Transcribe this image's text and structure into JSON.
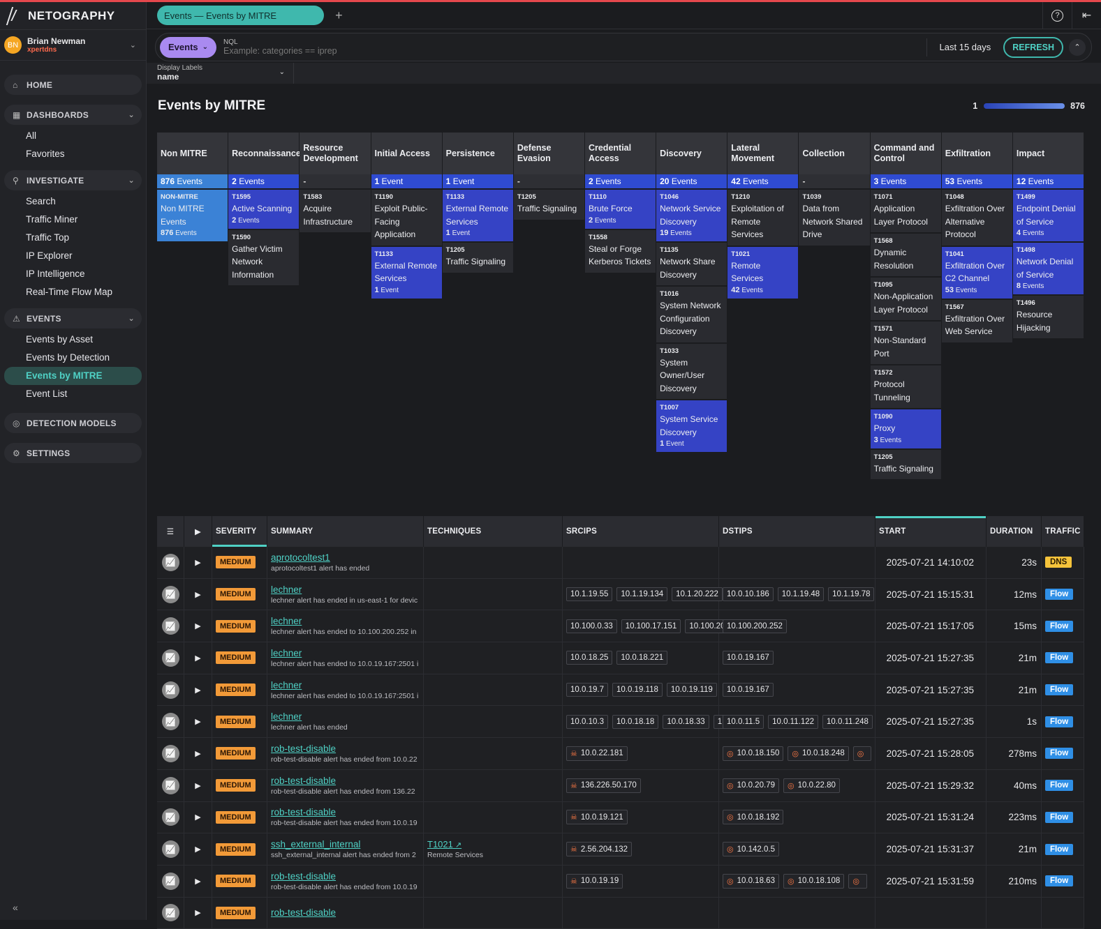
{
  "app": {
    "logo_text": "NETOGRAPHY",
    "accent": "#4fd1c5"
  },
  "user": {
    "initials": "BN",
    "name": "Brian Newman",
    "org": "xpertdns"
  },
  "topbar": {
    "tab_label": "Events — Events by MITRE",
    "add_tab": "+",
    "help_icon": "?",
    "collapse_icon": "⇤"
  },
  "query": {
    "mode": "Events",
    "nql_label": "NQL",
    "placeholder": "Example: categories == iprep",
    "range": "Last 15 days",
    "refresh": "REFRESH"
  },
  "display_labels": {
    "label": "Display Labels",
    "value": "name"
  },
  "nav": {
    "home": "HOME",
    "dashboards": {
      "label": "DASHBOARDS",
      "items": [
        "All",
        "Favorites"
      ]
    },
    "investigate": {
      "label": "INVESTIGATE",
      "items": [
        "Search",
        "Traffic Miner",
        "Traffic Top",
        "IP Explorer",
        "IP Intelligence",
        "Real-Time Flow Map"
      ]
    },
    "events": {
      "label": "EVENTS",
      "items": [
        "Events by Asset",
        "Events by Detection",
        "Events by MITRE",
        "Event List"
      ]
    },
    "detection_models": "DETECTION MODELS",
    "settings": "SETTINGS"
  },
  "page": {
    "title": "Events by MITRE",
    "legend_min": "1",
    "legend_max": "876"
  },
  "mitre": [
    {
      "head": "Non MITRE",
      "count_num": "876",
      "count_txt": "Events",
      "kind": "nomitre",
      "techs": [
        {
          "id": "NON-MITRE",
          "name": "Non MITRE Events",
          "count": "876",
          "unit": "Events",
          "hit": "nomitre"
        }
      ]
    },
    {
      "head": "Reconnaissance",
      "count_num": "2",
      "count_txt": "Events",
      "kind": "hit",
      "techs": [
        {
          "id": "T1595",
          "name": "Active Scanning",
          "count": "2",
          "unit": "Events",
          "hit": "hit"
        },
        {
          "id": "T1590",
          "name": "Gather Victim Network Information",
          "count": "",
          "unit": "",
          "hit": ""
        }
      ]
    },
    {
      "head": "Resource Development",
      "count_num": "-",
      "count_txt": "",
      "kind": "empty",
      "techs": [
        {
          "id": "T1583",
          "name": "Acquire Infrastructure",
          "count": "",
          "unit": "",
          "hit": ""
        }
      ]
    },
    {
      "head": "Initial Access",
      "count_num": "1",
      "count_txt": "Event",
      "kind": "hit",
      "techs": [
        {
          "id": "T1190",
          "name": "Exploit Public-Facing Application",
          "count": "",
          "unit": "",
          "hit": ""
        },
        {
          "id": "T1133",
          "name": "External Remote Services",
          "count": "1",
          "unit": "Event",
          "hit": "hit"
        }
      ]
    },
    {
      "head": "Persistence",
      "count_num": "1",
      "count_txt": "Event",
      "kind": "hit",
      "techs": [
        {
          "id": "T1133",
          "name": "External Remote Services",
          "count": "1",
          "unit": "Event",
          "hit": "hit"
        },
        {
          "id": "T1205",
          "name": "Traffic Signaling",
          "count": "",
          "unit": "",
          "hit": ""
        }
      ]
    },
    {
      "head": "Defense Evasion",
      "count_num": "-",
      "count_txt": "",
      "kind": "empty",
      "techs": [
        {
          "id": "T1205",
          "name": "Traffic Signaling",
          "count": "",
          "unit": "",
          "hit": ""
        }
      ]
    },
    {
      "head": "Credential Access",
      "count_num": "2",
      "count_txt": "Events",
      "kind": "hit",
      "techs": [
        {
          "id": "T1110",
          "name": "Brute Force",
          "count": "2",
          "unit": "Events",
          "hit": "hit"
        },
        {
          "id": "T1558",
          "name": "Steal or Forge Kerberos Tickets",
          "count": "",
          "unit": "",
          "hit": ""
        }
      ]
    },
    {
      "head": "Discovery",
      "count_num": "20",
      "count_txt": "Events",
      "kind": "hit",
      "techs": [
        {
          "id": "T1046",
          "name": "Network Service Discovery",
          "count": "19",
          "unit": "Events",
          "hit": "hit"
        },
        {
          "id": "T1135",
          "name": "Network Share Discovery",
          "count": "",
          "unit": "",
          "hit": ""
        },
        {
          "id": "T1016",
          "name": "System Network Configuration Discovery",
          "count": "",
          "unit": "",
          "hit": ""
        },
        {
          "id": "T1033",
          "name": "System Owner/User Discovery",
          "count": "",
          "unit": "",
          "hit": ""
        },
        {
          "id": "T1007",
          "name": "System Service Discovery",
          "count": "1",
          "unit": "Event",
          "hit": "hit"
        }
      ]
    },
    {
      "head": "Lateral Movement",
      "count_num": "42",
      "count_txt": "Events",
      "kind": "hit",
      "techs": [
        {
          "id": "T1210",
          "name": "Exploitation of Remote Services",
          "count": "",
          "unit": "",
          "hit": ""
        },
        {
          "id": "T1021",
          "name": "Remote Services",
          "count": "42",
          "unit": "Events",
          "hit": "hit"
        }
      ]
    },
    {
      "head": "Collection",
      "count_num": "-",
      "count_txt": "",
      "kind": "empty",
      "techs": [
        {
          "id": "T1039",
          "name": "Data from Network Shared Drive",
          "count": "",
          "unit": "",
          "hit": ""
        }
      ]
    },
    {
      "head": "Command and Control",
      "count_num": "3",
      "count_txt": "Events",
      "kind": "hit",
      "techs": [
        {
          "id": "T1071",
          "name": "Application Layer Protocol",
          "count": "",
          "unit": "",
          "hit": ""
        },
        {
          "id": "T1568",
          "name": "Dynamic Resolution",
          "count": "",
          "unit": "",
          "hit": ""
        },
        {
          "id": "T1095",
          "name": "Non-Application Layer Protocol",
          "count": "",
          "unit": "",
          "hit": ""
        },
        {
          "id": "T1571",
          "name": "Non-Standard Port",
          "count": "",
          "unit": "",
          "hit": ""
        },
        {
          "id": "T1572",
          "name": "Protocol Tunneling",
          "count": "",
          "unit": "",
          "hit": ""
        },
        {
          "id": "T1090",
          "name": "Proxy",
          "count": "3",
          "unit": "Events",
          "hit": "hit"
        },
        {
          "id": "T1205",
          "name": "Traffic Signaling",
          "count": "",
          "unit": "",
          "hit": ""
        }
      ]
    },
    {
      "head": "Exfiltration",
      "count_num": "53",
      "count_txt": "Events",
      "kind": "hit",
      "techs": [
        {
          "id": "T1048",
          "name": "Exfiltration Over Alternative Protocol",
          "count": "",
          "unit": "",
          "hit": ""
        },
        {
          "id": "T1041",
          "name": "Exfiltration Over C2 Channel",
          "count": "53",
          "unit": "Events",
          "hit": "hit"
        },
        {
          "id": "T1567",
          "name": "Exfiltration Over Web Service",
          "count": "",
          "unit": "",
          "hit": ""
        }
      ]
    },
    {
      "head": "Impact",
      "count_num": "12",
      "count_txt": "Events",
      "kind": "hit",
      "techs": [
        {
          "id": "T1499",
          "name": "Endpoint Denial of Service",
          "count": "4",
          "unit": "Events",
          "hit": "hit"
        },
        {
          "id": "T1498",
          "name": "Network Denial of Service",
          "count": "8",
          "unit": "Events",
          "hit": "hit"
        },
        {
          "id": "T1496",
          "name": "Resource Hijacking",
          "count": "",
          "unit": "",
          "hit": ""
        }
      ]
    }
  ],
  "table": {
    "columns": [
      "SEVERITY",
      "SUMMARY",
      "TECHNIQUES",
      "SRCIPS",
      "DSTIPS",
      "START",
      "DURATION",
      "TRAFFIC"
    ],
    "rows": [
      {
        "severity": "MEDIUM",
        "title": "aprotocoltest1",
        "sub": "aprotocoltest1 alert has ended",
        "tech": "",
        "tech_sub": "",
        "src": [],
        "src_icon": false,
        "dst": [],
        "dst_icon": false,
        "start": "2025-07-21 14:10:02",
        "duration": "23s",
        "traffic": "DNS"
      },
      {
        "severity": "MEDIUM",
        "title": "lechner",
        "sub": "lechner alert has ended in us-east-1 for devic",
        "tech": "",
        "tech_sub": "",
        "src": [
          "10.1.19.55",
          "10.1.19.134",
          "10.1.20.222"
        ],
        "src_icon": false,
        "dst": [
          "10.0.10.186",
          "10.1.19.48",
          "10.1.19.78"
        ],
        "dst_icon": false,
        "start": "2025-07-21 15:15:31",
        "duration": "12ms",
        "traffic": "Flow"
      },
      {
        "severity": "MEDIUM",
        "title": "lechner",
        "sub": "lechner alert has ended to 10.100.200.252 in",
        "tech": "",
        "tech_sub": "",
        "src": [
          "10.100.0.33",
          "10.100.17.151",
          "10.100.20"
        ],
        "src_icon": false,
        "dst": [
          "10.100.200.252"
        ],
        "dst_icon": false,
        "start": "2025-07-21 15:17:05",
        "duration": "15ms",
        "traffic": "Flow"
      },
      {
        "severity": "MEDIUM",
        "title": "lechner",
        "sub": "lechner alert has ended to 10.0.19.167:2501 i",
        "tech": "",
        "tech_sub": "",
        "src": [
          "10.0.18.25",
          "10.0.18.221"
        ],
        "src_icon": false,
        "dst": [
          "10.0.19.167"
        ],
        "dst_icon": false,
        "start": "2025-07-21 15:27:35",
        "duration": "21m",
        "traffic": "Flow"
      },
      {
        "severity": "MEDIUM",
        "title": "lechner",
        "sub": "lechner alert has ended to 10.0.19.167:2501 i",
        "tech": "",
        "tech_sub": "",
        "src": [
          "10.0.19.7",
          "10.0.19.118",
          "10.0.19.119"
        ],
        "src_icon": false,
        "dst": [
          "10.0.19.167"
        ],
        "dst_icon": false,
        "start": "2025-07-21 15:27:35",
        "duration": "21m",
        "traffic": "Flow"
      },
      {
        "severity": "MEDIUM",
        "title": "lechner",
        "sub": "lechner alert has ended",
        "tech": "",
        "tech_sub": "",
        "src": [
          "10.0.10.3",
          "10.0.18.18",
          "10.0.18.33",
          "1"
        ],
        "src_icon": false,
        "dst": [
          "10.0.11.5",
          "10.0.11.122",
          "10.0.11.248"
        ],
        "dst_icon": false,
        "start": "2025-07-21 15:27:35",
        "duration": "1s",
        "traffic": "Flow"
      },
      {
        "severity": "MEDIUM",
        "title": "rob-test-disable",
        "sub": "rob-test-disable alert has ended from 10.0.22",
        "tech": "",
        "tech_sub": "",
        "src": [
          "10.0.22.181"
        ],
        "src_icon": true,
        "dst": [
          "10.0.18.150",
          "10.0.18.248",
          ""
        ],
        "dst_icon": true,
        "start": "2025-07-21 15:28:05",
        "duration": "278ms",
        "traffic": "Flow"
      },
      {
        "severity": "MEDIUM",
        "title": "rob-test-disable",
        "sub": "rob-test-disable alert has ended from 136.22",
        "tech": "",
        "tech_sub": "",
        "src": [
          "136.226.50.170"
        ],
        "src_icon": true,
        "dst": [
          "10.0.20.79",
          "10.0.22.80"
        ],
        "dst_icon": true,
        "start": "2025-07-21 15:29:32",
        "duration": "40ms",
        "traffic": "Flow"
      },
      {
        "severity": "MEDIUM",
        "title": "rob-test-disable",
        "sub": "rob-test-disable alert has ended from 10.0.19",
        "tech": "",
        "tech_sub": "",
        "src": [
          "10.0.19.121"
        ],
        "src_icon": true,
        "dst": [
          "10.0.18.192"
        ],
        "dst_icon": true,
        "start": "2025-07-21 15:31:24",
        "duration": "223ms",
        "traffic": "Flow"
      },
      {
        "severity": "MEDIUM",
        "title": "ssh_external_internal",
        "sub": "ssh_external_internal alert has ended from 2",
        "tech": "T1021",
        "tech_sub": "Remote Services",
        "src": [
          "2.56.204.132"
        ],
        "src_icon": true,
        "dst": [
          "10.142.0.5"
        ],
        "dst_icon": true,
        "start": "2025-07-21 15:31:37",
        "duration": "21m",
        "traffic": "Flow"
      },
      {
        "severity": "MEDIUM",
        "title": "rob-test-disable",
        "sub": "rob-test-disable alert has ended from 10.0.19",
        "tech": "",
        "tech_sub": "",
        "src": [
          "10.0.19.19"
        ],
        "src_icon": true,
        "dst": [
          "10.0.18.63",
          "10.0.18.108",
          ""
        ],
        "dst_icon": true,
        "start": "2025-07-21 15:31:59",
        "duration": "210ms",
        "traffic": "Flow"
      },
      {
        "severity": "MEDIUM",
        "title": "rob-test-disable",
        "sub": "",
        "tech": "",
        "tech_sub": "",
        "src": [],
        "src_icon": false,
        "dst": [],
        "dst_icon": false,
        "start": "",
        "duration": "",
        "traffic": ""
      }
    ]
  }
}
